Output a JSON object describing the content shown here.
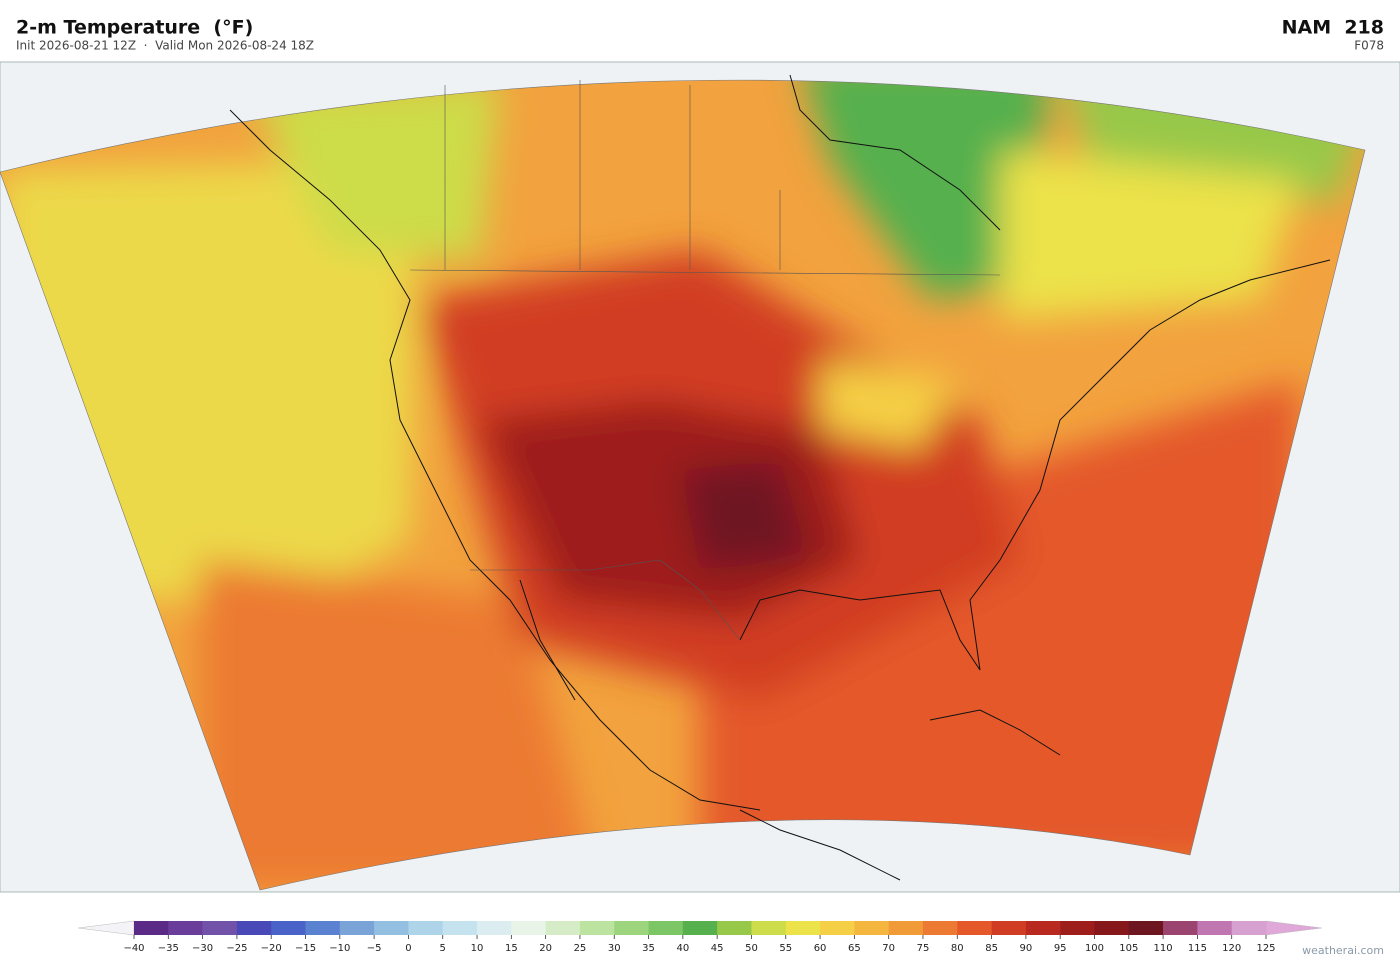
{
  "header": {
    "title": "2-m Temperature  (°F)",
    "subtitle": "Init 2026-08-21 12Z  ·  Valid Mon 2026-08-24 18Z",
    "model": "NAM  218",
    "forecast_hour": "F078"
  },
  "colorbar": {
    "ticks": [
      {
        "value": -40,
        "label": "−40"
      },
      {
        "value": -35,
        "label": "−35"
      },
      {
        "value": -30,
        "label": "−30"
      },
      {
        "value": -25,
        "label": "−25"
      },
      {
        "value": -20,
        "label": "−20"
      },
      {
        "value": -15,
        "label": "−15"
      },
      {
        "value": -10,
        "label": "−10"
      },
      {
        "value": -5,
        "label": "−5"
      },
      0,
      5,
      10,
      15,
      20,
      25,
      30,
      35,
      40,
      45,
      50,
      55,
      60,
      65,
      70,
      75,
      80,
      85,
      90,
      95,
      100,
      105,
      110,
      115,
      120,
      125
    ],
    "colors": [
      "#5b2a86",
      "#6a3d9a",
      "#7152a8",
      "#4848b8",
      "#4a63c8",
      "#5b82d0",
      "#7aa3d8",
      "#93bfe0",
      "#aed4ea",
      "#c5e3ef",
      "#dcedf2",
      "#e8f4e8",
      "#d6ecc6",
      "#bde3a0",
      "#9dd57f",
      "#7cc665",
      "#55b04d",
      "#98c84a",
      "#cddc4a",
      "#ece24a",
      "#f5cf45",
      "#f5b640",
      "#f09a38",
      "#ec7a33",
      "#e4582a",
      "#d13d24",
      "#b82a20",
      "#9e1e1c",
      "#86171a",
      "#6e1620",
      "#9c4470",
      "#c076b0",
      "#d6a0d0"
    ],
    "under_color": "#f4f4f8",
    "over_color": "#dfa8d8"
  },
  "watermark": "weatherai.com"
}
